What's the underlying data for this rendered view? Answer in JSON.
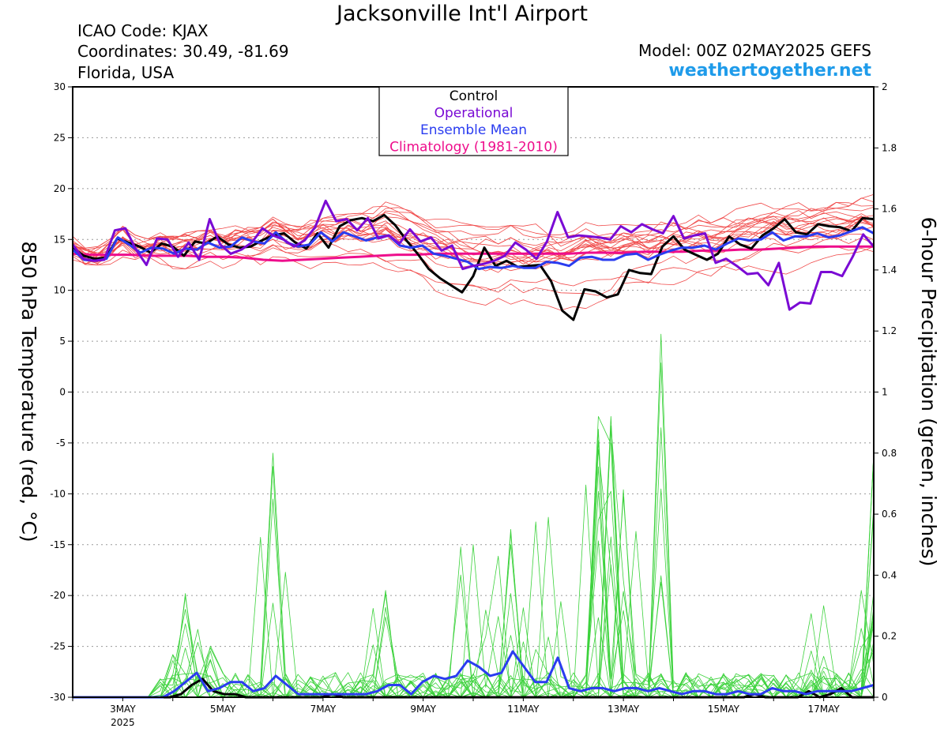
{
  "header": {
    "title": "Jacksonville Int'l Airport",
    "icao": "ICAO Code: KJAX",
    "coordinates": "Coordinates: 30.49, -81.69",
    "region": "Florida, USA",
    "model": "Model: 00Z 02MAY2025 GEFS",
    "website": "weathertogether.net"
  },
  "chart_data": {
    "type": "line",
    "title": "Jacksonville Int'l Airport",
    "x_axis": {
      "start": "2025-05-02 00Z",
      "end": "2025-05-18 00Z",
      "ticks": [
        "3MAY",
        "5MAY",
        "7MAY",
        "9MAY",
        "11MAY",
        "13MAY",
        "15MAY",
        "17MAY"
      ],
      "year_label": "2025",
      "step_hours": 6
    },
    "y_left": {
      "label": "850 hPa Temperature (red, °C)",
      "range": [
        -30,
        30
      ],
      "ticks": [
        -30,
        -25,
        -20,
        -15,
        -10,
        -5,
        0,
        5,
        10,
        15,
        20,
        25,
        30
      ]
    },
    "y_right": {
      "label": "6-hour Precipitation (green, inches)",
      "range": [
        0,
        2
      ],
      "ticks": [
        0,
        0.2,
        0.4,
        0.6,
        0.8,
        1,
        1.2,
        1.4,
        1.6,
        1.8,
        2
      ]
    },
    "grid": true,
    "legend": {
      "position": "top-center",
      "entries": [
        {
          "label": "Control",
          "color": "#000000"
        },
        {
          "label": "Operational",
          "color": "#7a0ad4"
        },
        {
          "label": "Ensemble Mean",
          "color": "#2a3cf0"
        },
        {
          "label": "Climatology (1981-2010)",
          "color": "#ee0e8c"
        }
      ]
    },
    "colors": {
      "members_temp": "#f04848",
      "members_precip": "#3cd23c",
      "control": "#000000",
      "operational": "#7a0ad4",
      "mean": "#2a3cf0",
      "climatology": "#ee0e8c"
    },
    "temperature": {
      "control": [
        14.2,
        13.4,
        13.1,
        13.2,
        15.1,
        14.7,
        14.3,
        13.7,
        14.6,
        14.3,
        13.4,
        14.8,
        14.6,
        15.3,
        14.5,
        14.2,
        14.3,
        14.9,
        15.4,
        15.6,
        14.7,
        14.1,
        15.6,
        14.2,
        16.3,
        16.9,
        17.1,
        16.8,
        17.4,
        16.4,
        14.9,
        13.6,
        12.1,
        11.2,
        10.5,
        9.8,
        11.4,
        14.2,
        12.4,
        12.9,
        12.3,
        12.4,
        12.5,
        10.9,
        8.0,
        7.1,
        10.1,
        9.9,
        9.3,
        9.6,
        12.0,
        11.7,
        11.6,
        14.3,
        15.3,
        14.0,
        13.5,
        13.0,
        13.6,
        15.3,
        14.5,
        14.1,
        15.4,
        16.1,
        17.0,
        15.7,
        15.5,
        16.5,
        16.3,
        16.2,
        15.8,
        17.1,
        17.0
      ],
      "operational": [
        14.5,
        13.1,
        12.9,
        13.0,
        15.9,
        16.1,
        14.0,
        12.5,
        15.1,
        15.0,
        13.3,
        14.7,
        13.0,
        17.0,
        14.5,
        13.6,
        14.0,
        14.7,
        16.1,
        15.4,
        15.0,
        14.3,
        14.9,
        16.2,
        18.8,
        16.8,
        17.0,
        15.9,
        17.1,
        15.1,
        15.4,
        14.6,
        16.0,
        14.8,
        15.2,
        13.9,
        14.4,
        12.1,
        12.4,
        12.6,
        12.9,
        13.4,
        14.7,
        14.0,
        13.1,
        14.8,
        17.7,
        15.2,
        15.4,
        15.3,
        15.2,
        15.0,
        16.3,
        15.7,
        16.5,
        16.0,
        15.6,
        17.3,
        15.1,
        15.4,
        15.6,
        12.7,
        13.1,
        12.4,
        11.6,
        11.7,
        10.5,
        12.7,
        8.1,
        8.8,
        8.7,
        11.8,
        11.8,
        11.4,
        13.3,
        15.5,
        14.3
      ],
      "mean": [
        14.0,
        13.0,
        12.9,
        13.1,
        15.2,
        14.5,
        13.7,
        14.2,
        14.1,
        13.6,
        14.1,
        14.0,
        14.7,
        14.2,
        14.3,
        15.2,
        14.8,
        14.6,
        15.7,
        14.7,
        14.3,
        14.5,
        15.7,
        14.8,
        15.7,
        15.3,
        14.9,
        15.2,
        15.4,
        14.4,
        14.2,
        14.4,
        13.6,
        13.4,
        13.1,
        12.8,
        12.1,
        12.3,
        12.2,
        12.4,
        12.2,
        12.2,
        12.8,
        12.7,
        12.4,
        13.2,
        13.3,
        13.0,
        13.0,
        13.5,
        13.6,
        13.0,
        13.5,
        13.9,
        14.2,
        14.2,
        14.4,
        14.0,
        14.6,
        15.1,
        14.9,
        15.0,
        15.7,
        14.9,
        15.3,
        15.3,
        15.6,
        15.2,
        15.4,
        15.8,
        16.2,
        15.6
      ],
      "climatology": [
        13.6,
        13.5,
        13.5,
        13.5,
        13.4,
        13.4,
        13.4,
        13.3,
        13.3,
        13.2,
        13.0,
        12.9,
        13.0,
        13.1,
        13.2,
        13.3,
        13.4,
        13.5,
        13.5,
        13.6,
        13.6,
        13.6,
        13.6,
        13.6,
        13.6,
        13.6,
        13.6,
        13.7,
        13.7,
        13.7,
        13.8,
        13.8,
        13.8,
        13.9,
        13.9,
        14.0,
        14.0,
        14.1,
        14.2,
        14.3,
        14.3,
        14.3,
        14.3
      ],
      "ensemble_low": [
        13.0,
        12.4,
        12.2,
        12.3,
        13.0,
        12.8,
        12.3,
        12.2,
        12.4,
        12.0,
        11.6,
        11.8,
        12.2,
        11.8,
        11.6,
        12.4,
        12.2,
        11.8,
        12.6,
        12.0,
        11.4,
        11.5,
        12.0,
        11.6,
        11.8,
        11.4,
        11.0,
        11.2,
        11.0,
        10.4,
        10.0,
        9.8,
        9.0,
        8.4,
        7.8,
        7.4,
        6.6,
        6.4,
        7.2,
        7.6,
        7.4,
        7.2,
        8.0,
        7.6,
        7.0,
        6.8,
        6.8,
        6.6,
        7.8,
        9.0,
        9.6,
        9.8,
        10.2,
        10.6,
        10.4,
        10.2,
        10.6,
        10.8,
        10.4,
        10.0,
        9.6,
        10.2,
        10.4,
        11.0,
        11.2,
        11.4,
        11.8,
        12.0,
        12.2,
        12.4,
        12.6,
        12.5,
        12.7
      ],
      "ensemble_high": [
        15.4,
        14.2,
        14.4,
        14.0,
        16.8,
        15.8,
        15.2,
        15.0,
        15.8,
        15.4,
        15.6,
        15.8,
        16.0,
        15.8,
        16.4,
        16.8,
        16.2,
        16.4,
        17.2,
        16.6,
        16.2,
        16.6,
        17.4,
        16.8,
        17.8,
        17.4,
        17.6,
        18.2,
        18.8,
        18.6,
        18.4,
        17.8,
        17.2,
        17.4,
        17.0,
        16.6,
        16.4,
        16.8,
        16.2,
        16.6,
        16.6,
        16.4,
        16.6,
        16.2,
        15.8,
        16.4,
        16.8,
        16.4,
        16.2,
        16.8,
        17.0,
        16.6,
        17.0,
        17.4,
        17.6,
        17.4,
        17.8,
        17.6,
        17.8,
        18.2,
        18.0,
        18.4,
        18.6,
        18.2,
        18.8,
        19.0,
        18.8,
        19.0,
        19.2,
        19.4,
        19.6,
        19.5,
        19.8
      ]
    },
    "precipitation": {
      "control": [
        0,
        0,
        0,
        0,
        0,
        0,
        0,
        0,
        0,
        0,
        0.01,
        0.04,
        0.06,
        0.02,
        0.01,
        0.01,
        0,
        0,
        0,
        0,
        0,
        0,
        0,
        0,
        0.01,
        0,
        0,
        0,
        0,
        0,
        0,
        0,
        0,
        0,
        0,
        0,
        0,
        0,
        0,
        0,
        0,
        0,
        0,
        0,
        0,
        0,
        0,
        0,
        0,
        0,
        0,
        0,
        0,
        0,
        0,
        0,
        0,
        0,
        0,
        0,
        0,
        0,
        0,
        0.01,
        0,
        0,
        0,
        0,
        0.02,
        0,
        0.01,
        0.03,
        0,
        0,
        0
      ],
      "mean": [
        0,
        0,
        0,
        0,
        0,
        0,
        0,
        0,
        0,
        0.02,
        0.05,
        0.08,
        0.02,
        0.03,
        0.05,
        0.05,
        0.02,
        0.03,
        0.07,
        0.04,
        0.01,
        0.01,
        0.01,
        0.01,
        0.01,
        0.01,
        0.01,
        0.02,
        0.04,
        0.04,
        0.01,
        0.05,
        0.07,
        0.06,
        0.07,
        0.12,
        0.1,
        0.07,
        0.08,
        0.15,
        0.1,
        0.05,
        0.05,
        0.13,
        0.03,
        0.02,
        0.03,
        0.03,
        0.02,
        0.03,
        0.03,
        0.02,
        0.03,
        0.02,
        0.01,
        0.02,
        0.02,
        0.01,
        0.01,
        0.02,
        0.01,
        0.01,
        0.03,
        0.02,
        0.02,
        0.01,
        0.02,
        0.02,
        0.02,
        0.02,
        0.03,
        0.04
      ],
      "member_peaks": [
        {
          "date_index": 9,
          "value": 0.34
        },
        {
          "date_index": 10,
          "value": 0.18
        },
        {
          "date_index": 16,
          "value": 0.8
        },
        {
          "date_index": 25,
          "value": 0.35
        },
        {
          "date_index": 32,
          "value": 0.5
        },
        {
          "date_index": 35,
          "value": 0.55
        },
        {
          "date_index": 38,
          "value": 0.59
        },
        {
          "date_index": 42,
          "value": 0.92
        },
        {
          "date_index": 43,
          "value": 0.92
        },
        {
          "date_index": 44,
          "value": 0.68
        },
        {
          "date_index": 47,
          "value": 1.19
        },
        {
          "date_index": 60,
          "value": 0.3
        },
        {
          "date_index": 63,
          "value": 0.35
        },
        {
          "date_index": 65,
          "value": 0.28
        },
        {
          "date_index": 70,
          "value": 0.28
        },
        {
          "date_index": 72,
          "value": 0.8
        }
      ]
    }
  }
}
